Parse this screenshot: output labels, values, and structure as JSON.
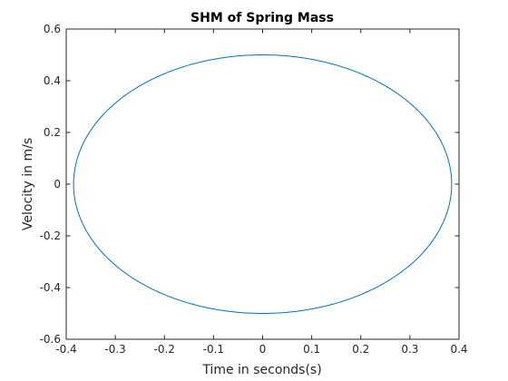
{
  "chart_data": {
    "type": "line",
    "title": "SHM of Spring Mass",
    "xlabel": "Time in seconds(s)",
    "ylabel": "Velocity in m/s",
    "xlim": [
      -0.4,
      0.4
    ],
    "ylim": [
      -0.6,
      0.6
    ],
    "xticks": [
      -0.4,
      -0.3,
      -0.2,
      -0.1,
      0,
      0.1,
      0.2,
      0.3,
      0.4
    ],
    "xtick_labels": [
      "-0.4",
      "-0.3",
      "-0.2",
      "-0.1",
      "0",
      "0.1",
      "0.2",
      "0.3",
      "0.4"
    ],
    "yticks": [
      -0.6,
      -0.4,
      -0.2,
      0,
      0.2,
      0.4,
      0.6
    ],
    "ytick_labels": [
      "-0.6",
      "-0.4",
      "-0.2",
      "0",
      "0.2",
      "0.4",
      "0.6"
    ],
    "grid": false,
    "series": [
      {
        "color": "#0072bd",
        "shape": "ellipse",
        "center": [
          0,
          0
        ],
        "x_amplitude": 0.385,
        "y_amplitude": 0.5
      }
    ]
  }
}
